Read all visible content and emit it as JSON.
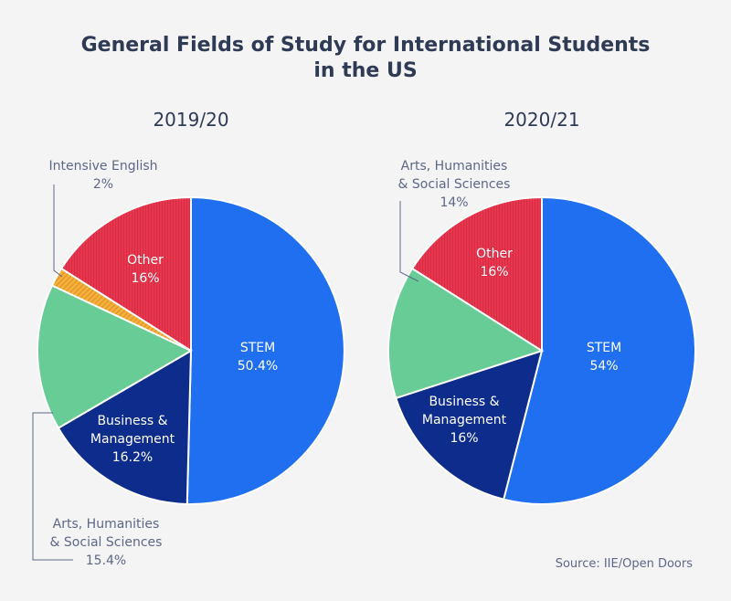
{
  "title_line1": "General Fields of Study for International Students",
  "title_line2": "in the US",
  "source": "Source: IIE/Open Doors",
  "colors": {
    "stem": "#1f6ff0",
    "business": "#0e2c8c",
    "arts": "#67cc95",
    "english": "#f3b23c",
    "other": "#e8364f",
    "text_dark": "#2f3a55",
    "text_muted": "#5e6785"
  },
  "chart_data": [
    {
      "type": "pie",
      "title": "2019/20",
      "labels": [
        "STEM",
        "Business & Management",
        "Arts, Humanities & Social Sciences",
        "Intensive English",
        "Other"
      ],
      "values": [
        50.4,
        16.2,
        15.4,
        2,
        16
      ],
      "value_labels": [
        "50.4%",
        "16.2%",
        "15.4%",
        "2%",
        "16%"
      ]
    },
    {
      "type": "pie",
      "title": "2020/21",
      "labels": [
        "STEM",
        "Business & Management",
        "Arts, Humanities & Social Sciences",
        "Other"
      ],
      "values": [
        54,
        16,
        14,
        16
      ],
      "value_labels": [
        "54%",
        "16%",
        "14%",
        "16%"
      ]
    }
  ],
  "labels": {
    "p1_stem_name": "STEM",
    "p1_stem_value": "50.4%",
    "p1_bus_line1": "Business &",
    "p1_bus_line2": "Management",
    "p1_bus_value": "16.2%",
    "p1_other_name": "Other",
    "p1_other_value": "16%",
    "p1_eng_name": "Intensive English",
    "p1_eng_value": "2%",
    "p1_arts_line1": "Arts, Humanities",
    "p1_arts_line2": "& Social Sciences",
    "p1_arts_value": "15.4%",
    "p2_stem_name": "STEM",
    "p2_stem_value": "54%",
    "p2_bus_line1": "Business &",
    "p2_bus_line2": "Management",
    "p2_bus_value": "16%",
    "p2_other_name": "Other",
    "p2_other_value": "16%",
    "p2_arts_line1": "Arts, Humanities",
    "p2_arts_line2": "& Social Sciences",
    "p2_arts_value": "14%"
  }
}
